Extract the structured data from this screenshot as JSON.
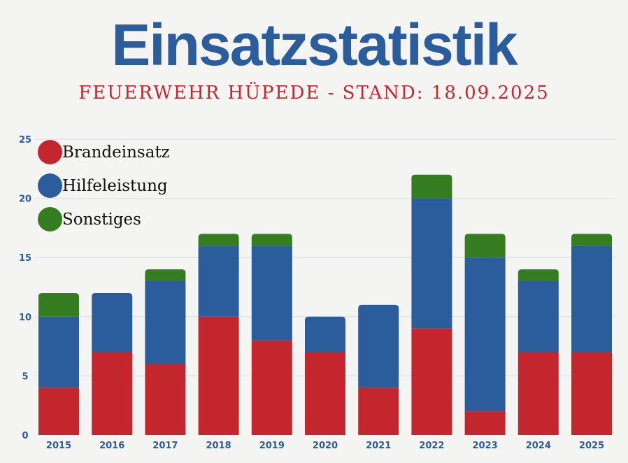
{
  "header": {
    "title": "Einsatzstatistik",
    "subtitle": "FEUERWEHR HÜPEDE - STAND: 18.09.2025"
  },
  "chart_data": {
    "type": "bar",
    "stacked": true,
    "categories": [
      "2015",
      "2016",
      "2017",
      "2018",
      "2019",
      "2020",
      "2021",
      "2022",
      "2023",
      "2024",
      "2025"
    ],
    "series": [
      {
        "name": "Brandeinsatz",
        "color": "#c4262e",
        "values": [
          4,
          7,
          6,
          10,
          8,
          7,
          4,
          9,
          2,
          7,
          7
        ]
      },
      {
        "name": "Hilfeleistung",
        "color": "#2b5c9c",
        "values": [
          6,
          5,
          7,
          6,
          8,
          3,
          7,
          11,
          13,
          6,
          9
        ]
      },
      {
        "name": "Sonstiges",
        "color": "#367d22",
        "values": [
          2,
          0,
          1,
          1,
          1,
          0,
          0,
          2,
          2,
          1,
          1
        ]
      }
    ],
    "ylim": [
      0,
      25
    ],
    "yticks": [
      "0",
      "5",
      "10",
      "15",
      "20",
      "25"
    ],
    "grid": true,
    "legend": "top-left"
  }
}
